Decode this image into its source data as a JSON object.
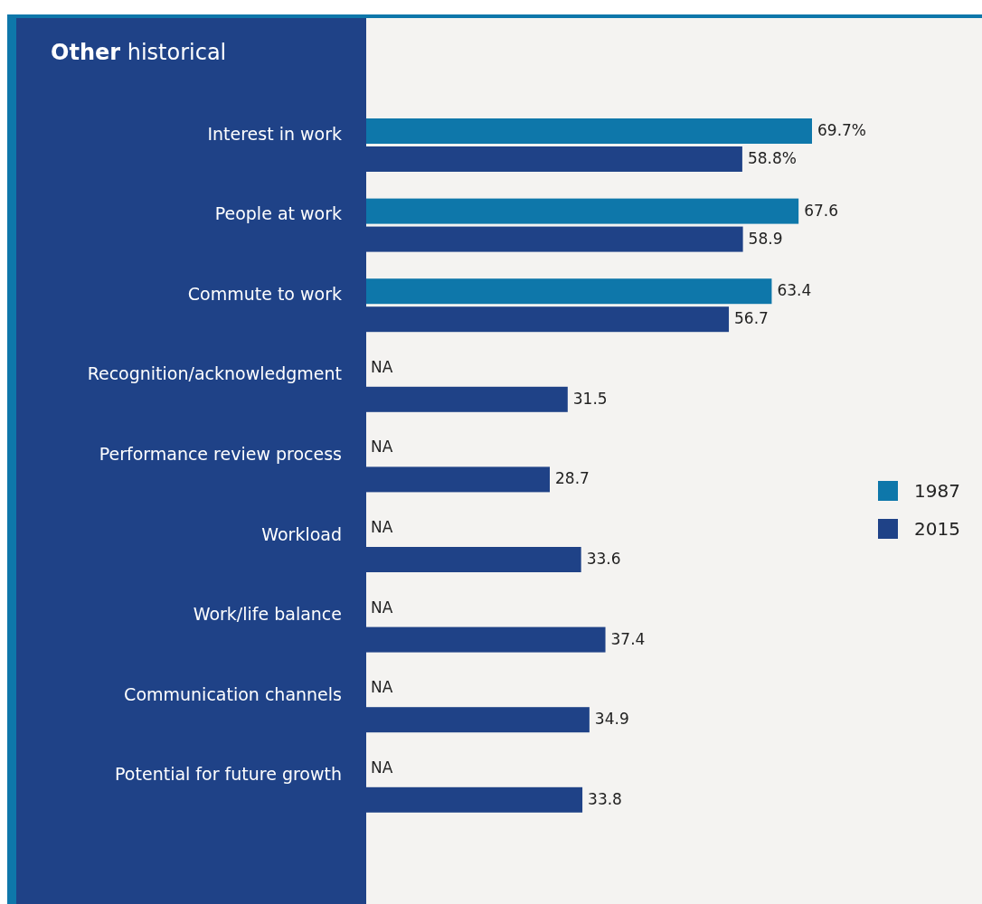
{
  "chart_data": {
    "type": "bar",
    "orientation": "horizontal",
    "title": "Other historical",
    "categories": [
      "Interest in work",
      "People at work",
      "Commute to work",
      "Recognition/acknowledgment",
      "Performance review process",
      "Workload",
      "Work/life balance",
      "Communication channels",
      "Potential for future growth"
    ],
    "series": [
      {
        "name": "1987",
        "color": "#0e77aa",
        "values": [
          69.7,
          67.6,
          63.4,
          null,
          null,
          null,
          null,
          null,
          null
        ],
        "value_labels": [
          "69.7%",
          "67.6",
          "63.4",
          "NA",
          "NA",
          "NA",
          "NA",
          "NA",
          "NA"
        ]
      },
      {
        "name": "2015",
        "color": "#1f4287",
        "values": [
          58.8,
          58.9,
          56.7,
          31.5,
          28.7,
          33.6,
          37.4,
          34.9,
          33.8
        ],
        "value_labels": [
          "58.8%",
          "58.9",
          "56.7",
          "31.5",
          "28.7",
          "33.6",
          "37.4",
          "34.9",
          "33.8"
        ]
      }
    ],
    "legend": "right"
  }
}
